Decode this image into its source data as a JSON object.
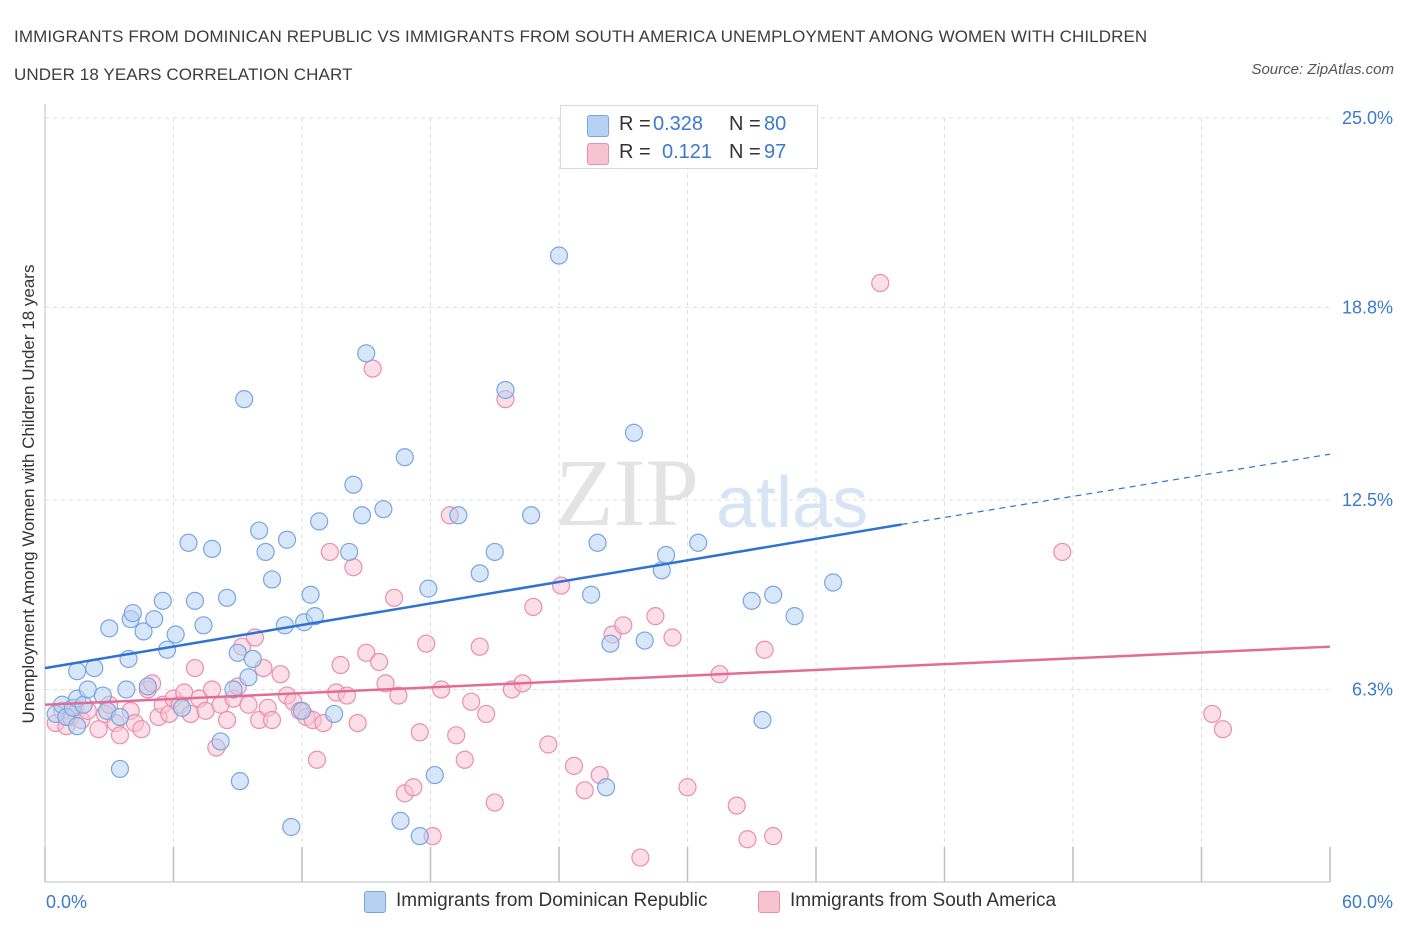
{
  "title": "IMMIGRANTS FROM DOMINICAN REPUBLIC VS IMMIGRANTS FROM SOUTH AMERICA UNEMPLOYMENT AMONG WOMEN WITH CHILDREN UNDER 18 YEARS CORRELATION CHART",
  "source": "Source: ZipAtlas.com",
  "watermark": {
    "zip": "ZIP",
    "atlas": "atlas"
  },
  "colors": {
    "blue_fill": "#b7d1f3",
    "blue_stroke": "#7aa6e0",
    "blue_line": "#2f72d1",
    "pink_fill": "#f7c3d3",
    "pink_stroke": "#e98fae",
    "pink_line": "#e56b97",
    "axis_text": "#3b79d1",
    "grid": "#dedede"
  },
  "legend_top": {
    "rows": [
      {
        "r_label": "R =",
        "r_value": "0.328",
        "n_label": "N =",
        "n_value": "80"
      },
      {
        "r_label": "R =",
        "r_value": "0.121",
        "n_label": "N =",
        "n_value": "97"
      }
    ]
  },
  "legend_bottom": {
    "items": [
      {
        "label": "Immigrants from Dominican Republic"
      },
      {
        "label": "Immigrants from South America"
      }
    ]
  },
  "chart_data": {
    "type": "scatter",
    "ylabel": "Unemployment Among Women with Children Under 18 years",
    "xlim": [
      0,
      60
    ],
    "ylim": [
      0,
      25
    ],
    "y_ticks": [
      6.3,
      12.5,
      18.8,
      25.0
    ],
    "y_tick_labels": [
      "6.3%",
      "12.5%",
      "18.8%",
      "25.0%"
    ],
    "x_tick_labels": [
      "0.0%",
      "60.0%"
    ],
    "grid": true,
    "series": [
      {
        "name": "Immigrants from Dominican Republic",
        "color": "#b7d1f3",
        "r": 0.328,
        "n": 80,
        "trend": {
          "x0": 0,
          "y0": 7.0,
          "x1": 40,
          "y1": 11.7,
          "x_dash_end": 60,
          "y_dash_end": 14.0
        },
        "points": [
          [
            0.5,
            5.5
          ],
          [
            0.8,
            5.8
          ],
          [
            1.0,
            5.4
          ],
          [
            1.3,
            5.7
          ],
          [
            1.5,
            5.1
          ],
          [
            1.5,
            6.0
          ],
          [
            1.8,
            5.8
          ],
          [
            1.5,
            6.9
          ],
          [
            2.0,
            6.3
          ],
          [
            2.3,
            7.0
          ],
          [
            2.7,
            6.1
          ],
          [
            3.0,
            8.3
          ],
          [
            2.9,
            5.6
          ],
          [
            3.5,
            5.4
          ],
          [
            3.5,
            3.7
          ],
          [
            3.8,
            6.3
          ],
          [
            3.9,
            7.3
          ],
          [
            4.0,
            8.6
          ],
          [
            4.1,
            8.8
          ],
          [
            4.6,
            8.2
          ],
          [
            4.8,
            6.4
          ],
          [
            5.1,
            8.6
          ],
          [
            5.5,
            9.2
          ],
          [
            5.7,
            7.6
          ],
          [
            6.1,
            8.1
          ],
          [
            6.4,
            5.7
          ],
          [
            6.7,
            11.1
          ],
          [
            7.0,
            9.2
          ],
          [
            7.4,
            8.4
          ],
          [
            7.8,
            10.9
          ],
          [
            8.2,
            4.6
          ],
          [
            8.5,
            9.3
          ],
          [
            8.8,
            6.3
          ],
          [
            9.0,
            7.5
          ],
          [
            9.1,
            3.3
          ],
          [
            9.3,
            15.8
          ],
          [
            9.5,
            6.7
          ],
          [
            9.7,
            7.3
          ],
          [
            10.0,
            11.5
          ],
          [
            10.3,
            10.8
          ],
          [
            10.6,
            9.9
          ],
          [
            11.2,
            8.4
          ],
          [
            11.3,
            11.2
          ],
          [
            11.5,
            1.8
          ],
          [
            12.0,
            5.6
          ],
          [
            12.1,
            8.5
          ],
          [
            12.4,
            9.4
          ],
          [
            12.6,
            8.7
          ],
          [
            12.8,
            11.8
          ],
          [
            13.5,
            5.5
          ],
          [
            14.2,
            10.8
          ],
          [
            14.4,
            13.0
          ],
          [
            14.8,
            12.0
          ],
          [
            15.0,
            17.3
          ],
          [
            15.8,
            12.2
          ],
          [
            16.6,
            2.0
          ],
          [
            16.8,
            13.9
          ],
          [
            17.5,
            1.5
          ],
          [
            17.9,
            9.6
          ],
          [
            18.2,
            3.5
          ],
          [
            19.3,
            12.0
          ],
          [
            20.3,
            10.1
          ],
          [
            21.0,
            10.8
          ],
          [
            21.5,
            16.1
          ],
          [
            22.7,
            12.0
          ],
          [
            24.0,
            20.5
          ],
          [
            25.5,
            9.4
          ],
          [
            25.8,
            11.1
          ],
          [
            26.2,
            3.1
          ],
          [
            26.4,
            7.8
          ],
          [
            27.5,
            14.7
          ],
          [
            28.0,
            7.9
          ],
          [
            28.8,
            10.2
          ],
          [
            29.0,
            10.7
          ],
          [
            30.5,
            11.1
          ],
          [
            33.0,
            9.2
          ],
          [
            33.5,
            5.3
          ],
          [
            34.0,
            9.4
          ],
          [
            35.0,
            8.7
          ],
          [
            36.8,
            9.8
          ]
        ]
      },
      {
        "name": "Immigrants from South America",
        "color": "#f7c3d3",
        "r": 0.121,
        "n": 97,
        "trend": {
          "x0": 0,
          "y0": 5.8,
          "x1": 60,
          "y1": 7.7
        },
        "points": [
          [
            0.5,
            5.2
          ],
          [
            0.8,
            5.6
          ],
          [
            1.0,
            5.1
          ],
          [
            1.2,
            5.4
          ],
          [
            1.4,
            5.7
          ],
          [
            1.7,
            5.3
          ],
          [
            2.0,
            5.6
          ],
          [
            2.5,
            5.0
          ],
          [
            2.8,
            5.5
          ],
          [
            3.0,
            5.8
          ],
          [
            3.3,
            5.2
          ],
          [
            3.5,
            4.8
          ],
          [
            4.0,
            5.6
          ],
          [
            4.2,
            5.2
          ],
          [
            4.5,
            5.0
          ],
          [
            4.8,
            6.3
          ],
          [
            5.0,
            6.5
          ],
          [
            5.3,
            5.4
          ],
          [
            5.5,
            5.8
          ],
          [
            5.8,
            5.5
          ],
          [
            6.0,
            6.0
          ],
          [
            6.3,
            5.8
          ],
          [
            6.5,
            6.2
          ],
          [
            6.8,
            5.5
          ],
          [
            7.0,
            7.0
          ],
          [
            7.2,
            6.0
          ],
          [
            7.5,
            5.6
          ],
          [
            7.8,
            6.3
          ],
          [
            8.0,
            4.4
          ],
          [
            8.2,
            5.8
          ],
          [
            8.5,
            5.3
          ],
          [
            8.8,
            6.0
          ],
          [
            9.0,
            6.4
          ],
          [
            9.2,
            7.7
          ],
          [
            9.5,
            5.8
          ],
          [
            9.8,
            8.0
          ],
          [
            10.0,
            5.3
          ],
          [
            10.2,
            7.0
          ],
          [
            10.4,
            5.7
          ],
          [
            10.6,
            5.3
          ],
          [
            11.0,
            6.8
          ],
          [
            11.3,
            6.1
          ],
          [
            11.6,
            5.9
          ],
          [
            11.9,
            5.6
          ],
          [
            12.2,
            5.4
          ],
          [
            12.5,
            5.3
          ],
          [
            12.7,
            4.0
          ],
          [
            13.0,
            5.2
          ],
          [
            13.3,
            10.8
          ],
          [
            13.6,
            6.2
          ],
          [
            13.8,
            7.1
          ],
          [
            14.1,
            6.1
          ],
          [
            14.4,
            10.3
          ],
          [
            14.6,
            5.2
          ],
          [
            15.0,
            7.5
          ],
          [
            15.3,
            16.8
          ],
          [
            15.6,
            7.2
          ],
          [
            15.9,
            6.5
          ],
          [
            16.3,
            9.3
          ],
          [
            16.5,
            6.1
          ],
          [
            16.8,
            2.9
          ],
          [
            17.2,
            3.1
          ],
          [
            17.5,
            4.9
          ],
          [
            17.8,
            7.8
          ],
          [
            18.1,
            1.5
          ],
          [
            18.5,
            6.3
          ],
          [
            18.9,
            12.0
          ],
          [
            19.2,
            4.8
          ],
          [
            19.6,
            4.0
          ],
          [
            19.9,
            5.9
          ],
          [
            20.3,
            7.7
          ],
          [
            20.6,
            5.5
          ],
          [
            21.0,
            2.6
          ],
          [
            21.5,
            15.8
          ],
          [
            21.8,
            6.3
          ],
          [
            22.3,
            6.5
          ],
          [
            22.8,
            9.0
          ],
          [
            23.5,
            4.5
          ],
          [
            24.1,
            9.7
          ],
          [
            24.7,
            3.8
          ],
          [
            25.2,
            3.0
          ],
          [
            25.9,
            3.5
          ],
          [
            26.5,
            8.1
          ],
          [
            27.0,
            8.4
          ],
          [
            27.8,
            0.8
          ],
          [
            28.5,
            8.7
          ],
          [
            29.3,
            8.0
          ],
          [
            30.0,
            3.1
          ],
          [
            31.5,
            6.8
          ],
          [
            32.3,
            2.5
          ],
          [
            32.8,
            1.4
          ],
          [
            33.6,
            7.6
          ],
          [
            34.0,
            1.5
          ],
          [
            39.0,
            19.6
          ],
          [
            47.5,
            10.8
          ],
          [
            54.5,
            5.5
          ],
          [
            55.0,
            5.0
          ]
        ]
      }
    ]
  }
}
